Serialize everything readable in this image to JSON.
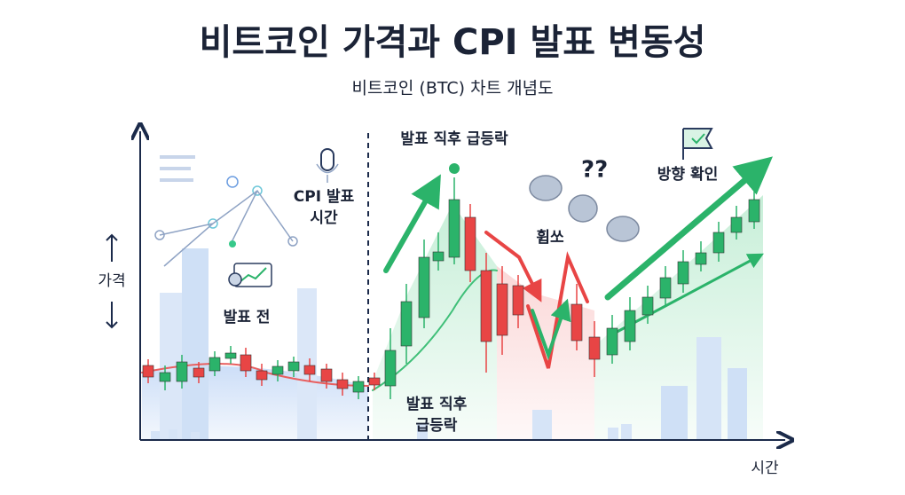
{
  "header": {
    "title": "비트코인 가격과 CPI 발표 변동성",
    "subtitle": "비트코인 (BTC) 차트 개념도"
  },
  "axes": {
    "y_label": "가격",
    "x_label": "시간"
  },
  "annotations": {
    "cpi_time": [
      "CPI 발표",
      "시간"
    ],
    "before": "발표 전",
    "spike_top": "발표 직후 급등락",
    "spike_bottom": [
      "발표 직후",
      "급등락"
    ],
    "whipsaw": "휩쏘",
    "confirm": "방향 확인"
  }
}
